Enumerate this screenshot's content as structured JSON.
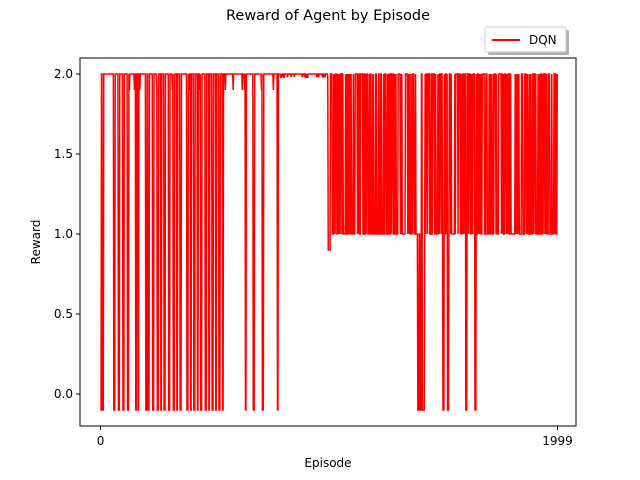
{
  "chart_data": {
    "type": "line",
    "title": "Reward of Agent by Episode",
    "xlabel": "Episode",
    "ylabel": "Reward",
    "xlim": [
      -90,
      2080
    ],
    "ylim": [
      -0.2,
      2.1
    ],
    "x_ticks": [
      0,
      1999
    ],
    "y_ticks": [
      0.0,
      0.5,
      1.0,
      1.5,
      2.0
    ],
    "grid": false,
    "legend_placement": "upper-right, above axes",
    "series": [
      {
        "name": "DQN",
        "color": "#ff0000",
        "segments": [
          {
            "x0": 0,
            "x1": 540,
            "levels": [
              2.0,
              1.9,
              -0.1
            ],
            "dominant": 2.0
          },
          {
            "x0": 540,
            "x1": 780,
            "levels": [
              2.0,
              1.9,
              -0.1
            ],
            "dominant": 2.0
          },
          {
            "x0": 780,
            "x1": 995,
            "levels": [
              2.0,
              1.98
            ],
            "dominant": 2.0
          },
          {
            "x0": 995,
            "x1": 1999,
            "levels": [
              2.0,
              1.0,
              0.9,
              -0.1
            ],
            "dominant": 1.0
          }
        ],
        "drops_to_min": [
          0,
          10,
          60,
          80,
          100,
          120,
          155,
          165,
          200,
          210,
          230,
          250,
          265,
          280,
          300,
          320,
          335,
          350,
          380,
          395,
          410,
          425,
          440,
          460,
          475,
          490,
          505,
          520,
          535,
          635,
          670,
          710,
          775,
          1390,
          1400,
          1410,
          1415,
          1500,
          1520,
          1600,
          1640
        ]
      }
    ]
  },
  "ytick_labels": [
    "0.0",
    "0.5",
    "1.0",
    "1.5",
    "2.0"
  ],
  "xtick_labels": [
    "0",
    "1999"
  ]
}
